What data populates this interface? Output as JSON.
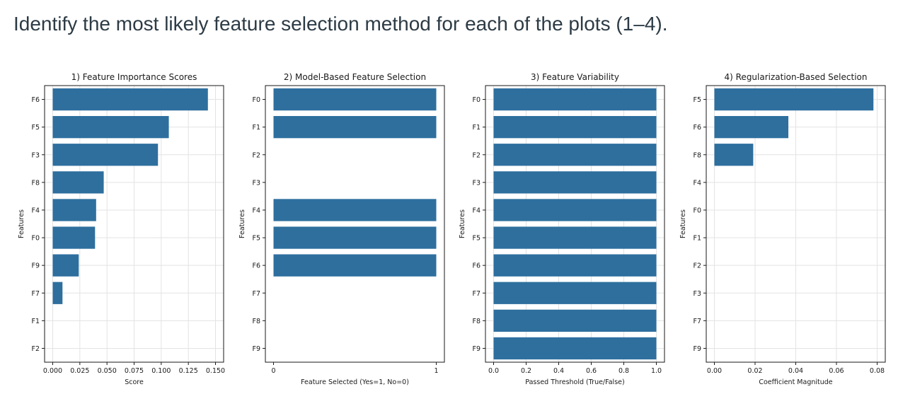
{
  "question": "Identify the most likely feature selection method for each of the plots (1–4).",
  "colors": {
    "bar": "#2e6f9e",
    "grid": "#e3e3e3",
    "axis": "#1a1a1a"
  },
  "chart_data": [
    {
      "type": "bar",
      "orientation": "horizontal",
      "title": "1) Feature Importance Scores",
      "xlabel": "Score",
      "ylabel": "Features",
      "categories": [
        "F6",
        "F5",
        "F3",
        "F8",
        "F4",
        "F0",
        "F9",
        "F7",
        "F1",
        "F2"
      ],
      "values": [
        0.143,
        0.107,
        0.097,
        0.047,
        0.04,
        0.039,
        0.024,
        0.009,
        0,
        0
      ],
      "xlim": [
        0,
        0.15
      ],
      "xticks": [
        "0.000",
        "0.025",
        "0.050",
        "0.075",
        "0.100",
        "0.125",
        "0.150"
      ],
      "grid": true
    },
    {
      "type": "bar",
      "orientation": "horizontal",
      "title": "2) Model-Based Feature Selection",
      "xlabel": "Feature Selected (Yes=1, No=0)",
      "ylabel": "Features",
      "categories": [
        "F0",
        "F1",
        "F2",
        "F3",
        "F4",
        "F5",
        "F6",
        "F7",
        "F8",
        "F9"
      ],
      "values": [
        1,
        1,
        0,
        0,
        1,
        1,
        1,
        0,
        0,
        0
      ],
      "xlim": [
        0,
        1
      ],
      "xticks": [
        "0",
        "1"
      ],
      "grid": false
    },
    {
      "type": "bar",
      "orientation": "horizontal",
      "title": "3) Feature Variability",
      "xlabel": "Passed Threshold (True/False)",
      "ylabel": "Features",
      "categories": [
        "F0",
        "F1",
        "F2",
        "F3",
        "F4",
        "F5",
        "F6",
        "F7",
        "F8",
        "F9"
      ],
      "values": [
        1,
        1,
        1,
        1,
        1,
        1,
        1,
        1,
        1,
        1
      ],
      "xlim": [
        0,
        1.0
      ],
      "xticks": [
        "0.0",
        "0.2",
        "0.4",
        "0.6",
        "0.8",
        "1.0"
      ],
      "grid": true
    },
    {
      "type": "bar",
      "orientation": "horizontal",
      "title": "4) Regularization-Based Selection",
      "xlabel": "Coefficient Magnitude",
      "ylabel": "Features",
      "categories": [
        "F5",
        "F6",
        "F8",
        "F4",
        "F0",
        "F1",
        "F2",
        "F3",
        "F7",
        "F9"
      ],
      "values": [
        0.086,
        0.04,
        0.021,
        0,
        0,
        0,
        0,
        0,
        0,
        0
      ],
      "xlim": [
        0,
        0.088
      ],
      "xticks": [
        "0.00",
        "0.02",
        "0.04",
        "0.06",
        "0.08"
      ],
      "grid": true
    }
  ]
}
